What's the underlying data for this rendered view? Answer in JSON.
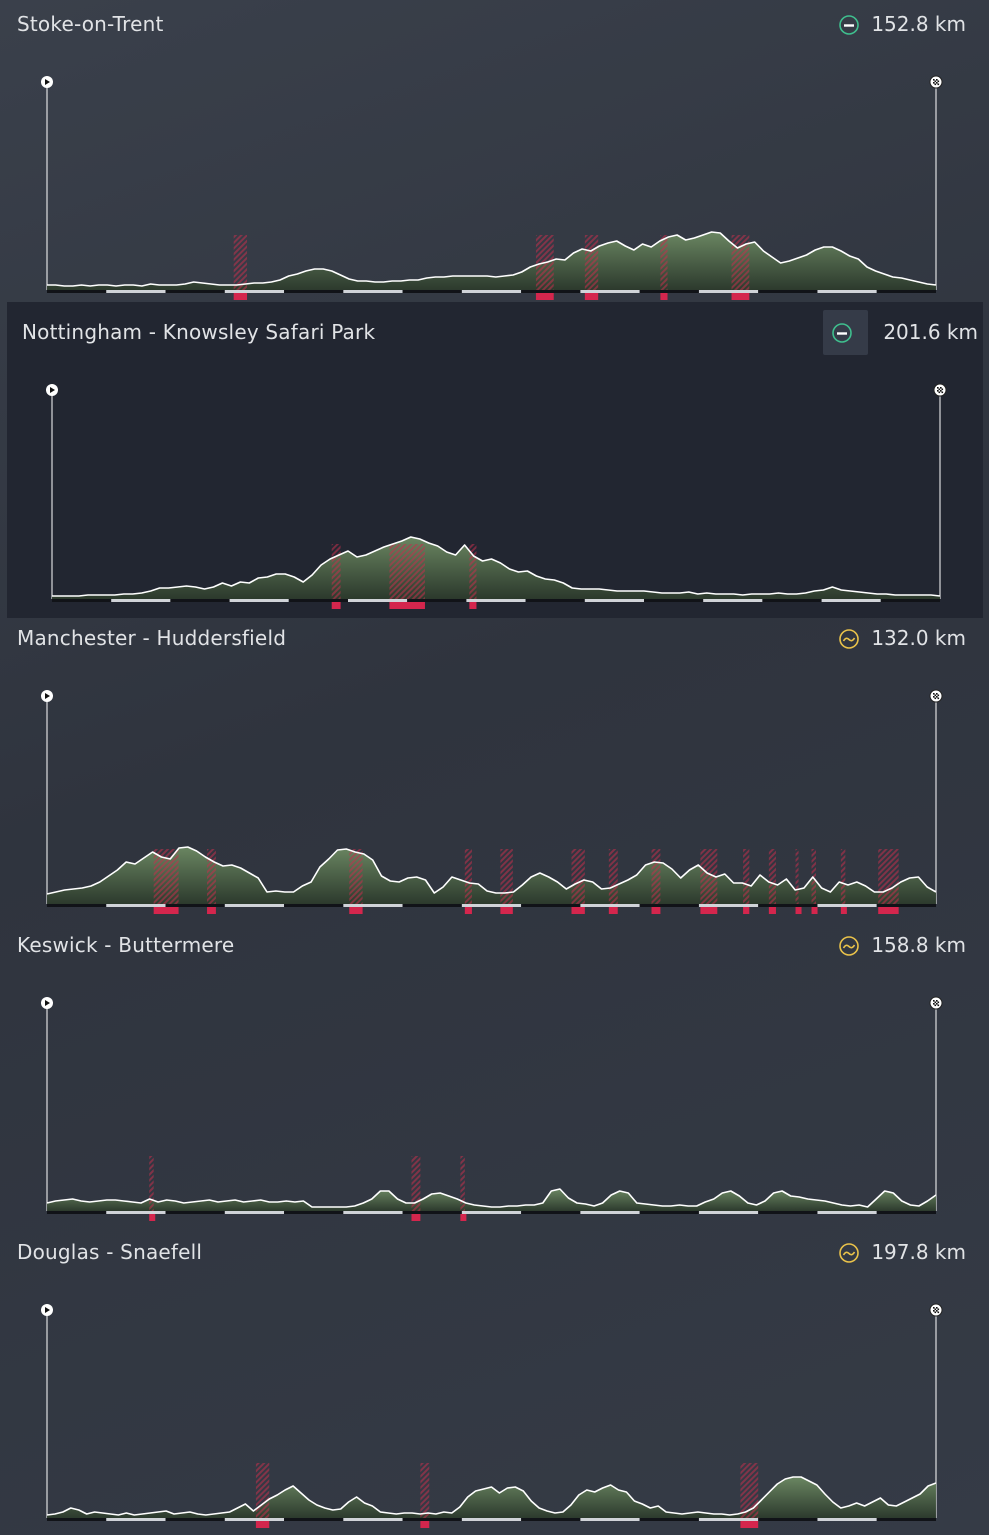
{
  "stages": [
    {
      "title": "Stoke-on-Trent",
      "distance": "152.8 km",
      "stage_type": "flat",
      "type_icon": "flat-stage-icon",
      "type_color": "#3fbf8e",
      "selected": false,
      "elevation": [
        5,
        5,
        4,
        4,
        5,
        4,
        5,
        5,
        4,
        5,
        5,
        4,
        6,
        5,
        5,
        5,
        6,
        8,
        7,
        6,
        5,
        5,
        5,
        6,
        7,
        7,
        8,
        10,
        14,
        16,
        19,
        21,
        21,
        19,
        15,
        11,
        9,
        9,
        8,
        8,
        9,
        9,
        10,
        10,
        12,
        13,
        13,
        14,
        14,
        14,
        14,
        14,
        13,
        14,
        15,
        18,
        23,
        26,
        28,
        31,
        30,
        37,
        41,
        39,
        44,
        47,
        49,
        44,
        40,
        46,
        43,
        49,
        53,
        55,
        50,
        52,
        55,
        58,
        57,
        49,
        42,
        46,
        48,
        39,
        33,
        27,
        29,
        32,
        35,
        40,
        43,
        43,
        39,
        34,
        31,
        23,
        19,
        16,
        13,
        12,
        10,
        8,
        6,
        5
      ],
      "climbs": [
        [
          0.21,
          0.225
        ],
        [
          0.55,
          0.57
        ],
        [
          0.605,
          0.62
        ],
        [
          0.69,
          0.698
        ],
        [
          0.77,
          0.79
        ]
      ]
    },
    {
      "title": "Nottingham - Knowsley Safari Park",
      "distance": "201.6 km",
      "stage_type": "flat",
      "type_icon": "flat-stage-icon",
      "type_color": "#3fbf8e",
      "selected": true,
      "elevation": [
        3,
        3,
        3,
        3,
        4,
        4,
        4,
        4,
        5,
        5,
        6,
        8,
        11,
        11,
        12,
        13,
        12,
        10,
        12,
        16,
        13,
        17,
        16,
        21,
        22,
        25,
        25,
        22,
        17,
        24,
        34,
        40,
        44,
        48,
        42,
        44,
        48,
        52,
        55,
        58,
        62,
        60,
        56,
        53,
        47,
        44,
        54,
        43,
        38,
        40,
        36,
        30,
        27,
        28,
        23,
        20,
        19,
        16,
        11,
        10,
        10,
        10,
        9,
        8,
        8,
        8,
        8,
        7,
        6,
        6,
        6,
        7,
        5,
        6,
        5,
        5,
        5,
        4,
        5,
        5,
        5,
        6,
        5,
        5,
        6,
        8,
        9,
        12,
        9,
        8,
        7,
        6,
        5,
        5,
        4,
        4,
        4,
        4,
        4,
        3
      ],
      "climbs": [
        [
          0.315,
          0.325
        ],
        [
          0.38,
          0.42
        ],
        [
          0.47,
          0.478
        ]
      ]
    },
    {
      "title": "Manchester - Huddersfield",
      "distance": "132.0 km",
      "stage_type": "hilly",
      "type_icon": "hilly-stage-icon",
      "type_color": "#e9c24a",
      "selected": false,
      "elevation": [
        10,
        12,
        14,
        15,
        16,
        18,
        22,
        28,
        34,
        42,
        40,
        46,
        52,
        47,
        45,
        56,
        57,
        53,
        47,
        42,
        38,
        39,
        36,
        31,
        26,
        12,
        13,
        12,
        12,
        18,
        22,
        37,
        45,
        54,
        55,
        52,
        50,
        44,
        28,
        23,
        22,
        26,
        27,
        24,
        11,
        17,
        27,
        24,
        21,
        20,
        13,
        11,
        11,
        12,
        19,
        27,
        31,
        27,
        22,
        15,
        20,
        24,
        22,
        15,
        16,
        20,
        24,
        29,
        39,
        42,
        41,
        35,
        26,
        34,
        39,
        31,
        27,
        30,
        21,
        21,
        18,
        29,
        22,
        19,
        25,
        14,
        16,
        27,
        16,
        12,
        22,
        19,
        22,
        18,
        12,
        12,
        16,
        22,
        26,
        27,
        17,
        12
      ],
      "climbs": [
        [
          0.12,
          0.148
        ],
        [
          0.18,
          0.19
        ],
        [
          0.34,
          0.355
        ],
        [
          0.47,
          0.478
        ],
        [
          0.51,
          0.524
        ],
        [
          0.59,
          0.605
        ],
        [
          0.632,
          0.642
        ],
        [
          0.68,
          0.69
        ],
        [
          0.735,
          0.754
        ],
        [
          0.783,
          0.79
        ],
        [
          0.812,
          0.82
        ],
        [
          0.842,
          0.845
        ],
        [
          0.86,
          0.865
        ],
        [
          0.893,
          0.898
        ],
        [
          0.935,
          0.958
        ]
      ]
    },
    {
      "title": "Keswick - Buttermere",
      "distance": "158.8 km",
      "stage_type": "hilly",
      "type_icon": "hilly-stage-icon",
      "type_color": "#e9c24a",
      "selected": false,
      "elevation": [
        8,
        10,
        11,
        12,
        10,
        9,
        10,
        11,
        11,
        10,
        9,
        8,
        12,
        9,
        11,
        10,
        8,
        9,
        10,
        11,
        9,
        10,
        11,
        9,
        10,
        11,
        9,
        9,
        10,
        9,
        10,
        4,
        4,
        4,
        4,
        4,
        5,
        8,
        12,
        20,
        20,
        12,
        8,
        8,
        12,
        17,
        18,
        15,
        12,
        8,
        6,
        5,
        4,
        4,
        5,
        5,
        6,
        6,
        8,
        20,
        22,
        13,
        8,
        7,
        5,
        8,
        16,
        20,
        18,
        8,
        7,
        6,
        5,
        5,
        6,
        5,
        5,
        9,
        12,
        18,
        20,
        15,
        8,
        6,
        10,
        18,
        20,
        15,
        14,
        12,
        11,
        10,
        8,
        6,
        5,
        6,
        4,
        12,
        20,
        18,
        10,
        6,
        5,
        10,
        16
      ],
      "climbs": [
        [
          0.115,
          0.12
        ],
        [
          0.41,
          0.42
        ],
        [
          0.465,
          0.47
        ]
      ]
    },
    {
      "title": "Douglas - Snaefell",
      "distance": "197.8 km",
      "stage_type": "hilly",
      "type_icon": "hilly-stage-icon",
      "type_color": "#e9c24a",
      "selected": false,
      "elevation": [
        3,
        4,
        6,
        10,
        8,
        4,
        6,
        5,
        4,
        3,
        5,
        3,
        4,
        5,
        6,
        7,
        4,
        5,
        6,
        4,
        3,
        4,
        5,
        6,
        10,
        14,
        7,
        13,
        19,
        23,
        28,
        32,
        25,
        18,
        13,
        10,
        8,
        9,
        16,
        21,
        15,
        12,
        6,
        5,
        4,
        5,
        5,
        4,
        5,
        4,
        6,
        5,
        11,
        21,
        27,
        29,
        31,
        25,
        30,
        31,
        27,
        17,
        10,
        7,
        5,
        6,
        13,
        23,
        28,
        26,
        30,
        33,
        28,
        26,
        17,
        14,
        10,
        12,
        6,
        5,
        4,
        5,
        6,
        5,
        4,
        4,
        3,
        4,
        6,
        10,
        18,
        26,
        34,
        39,
        41,
        41,
        37,
        33,
        24,
        16,
        10,
        12,
        15,
        12,
        16,
        20,
        13,
        12,
        16,
        20,
        24,
        32,
        35
      ],
      "climbs": [
        [
          0.235,
          0.25
        ],
        [
          0.42,
          0.43
        ],
        [
          0.78,
          0.8
        ]
      ]
    }
  ]
}
